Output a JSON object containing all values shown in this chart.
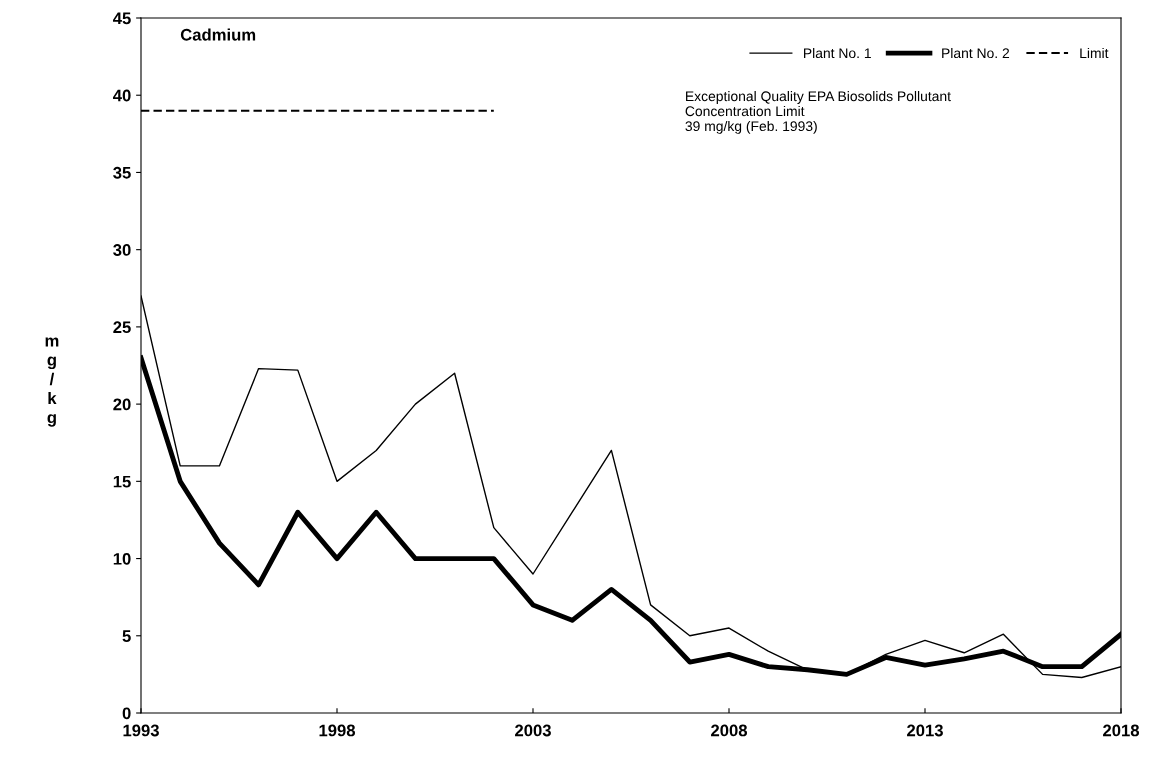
{
  "chart_data": {
    "type": "line",
    "title": "Cadmium",
    "ylabel": "mg/kg",
    "x": [
      1993,
      1994,
      1995,
      1996,
      1997,
      1998,
      1999,
      2000,
      2001,
      2002,
      2003,
      2004,
      2005,
      2006,
      2007,
      2008,
      2009,
      2010,
      2011,
      2012,
      2013,
      2014,
      2015,
      2016,
      2017,
      2018
    ],
    "series": [
      {
        "name": "Plant No. 1",
        "color": "#000000",
        "values": [
          27,
          16,
          16,
          22.3,
          22.2,
          15,
          17,
          20,
          22,
          12,
          9,
          13,
          17,
          7,
          5,
          5.5,
          4,
          2.8,
          2.5,
          3.8,
          4.7,
          3.9,
          5.1,
          2.5,
          2.3,
          3
        ]
      },
      {
        "name": "Plant No. 2",
        "color": "#000000",
        "values": [
          23,
          15,
          11,
          8.3,
          13,
          10,
          13,
          10,
          10,
          10,
          7,
          6,
          8,
          6,
          3.3,
          3.8,
          3,
          2.8,
          2.5,
          3.6,
          3.1,
          3.5,
          4,
          3,
          3,
          5.1
        ]
      },
      {
        "name": "Limit",
        "color": "#000000",
        "line_style": "dashed",
        "x": [
          1993,
          2002
        ],
        "values": [
          39,
          39
        ]
      }
    ],
    "annotations": [
      "Exceptional Quality EPA Biosolids Pollutant\nConcentration Limit\n39 mg/kg (Feb. 1993)"
    ],
    "xlim": [
      1993,
      2018
    ],
    "xticks": [
      1993,
      1998,
      2003,
      2008,
      2013,
      2018
    ],
    "ylim": [
      0,
      45
    ],
    "yticks": [
      0,
      5,
      10,
      15,
      20,
      25,
      30,
      35,
      40,
      45
    ],
    "legend": "top right",
    "grid": false,
    "marker": "none"
  }
}
